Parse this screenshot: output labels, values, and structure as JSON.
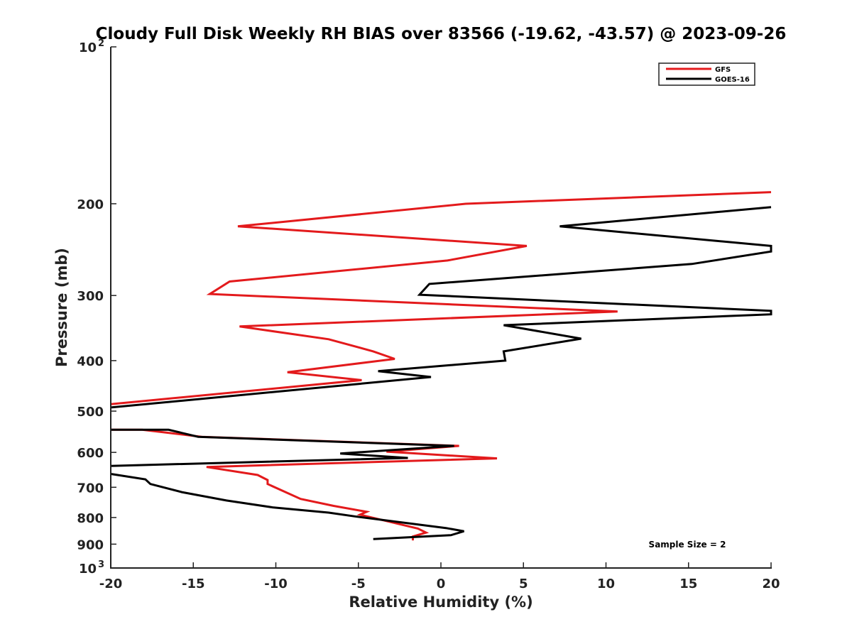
{
  "chart_data": {
    "type": "line",
    "title": "Cloudy Full Disk Weekly RH BIAS over 83566 (-19.62, -43.57) @ 2023-09-26",
    "xlabel": "Relative Humidity (%)",
    "ylabel": "Pressure (mb)",
    "xlim": [
      -20,
      20
    ],
    "ylim": [
      100,
      1000
    ],
    "y_scale": "log",
    "y_reversed": true,
    "grid": false,
    "legend_position": "top-right",
    "x_ticks": [
      "-20",
      "-15",
      "-10",
      "-5",
      "0",
      "5",
      "10",
      "15",
      "20"
    ],
    "y_ticks": [
      {
        "value": 100,
        "base": "10",
        "exp": "2"
      },
      {
        "value": 200,
        "label": "200"
      },
      {
        "value": 300,
        "label": "300"
      },
      {
        "value": 400,
        "label": "400"
      },
      {
        "value": 500,
        "label": "500"
      },
      {
        "value": 600,
        "label": "600"
      },
      {
        "value": 700,
        "label": "700"
      },
      {
        "value": 800,
        "label": "800"
      },
      {
        "value": 900,
        "label": "900"
      },
      {
        "value": 1000,
        "base": "10",
        "exp": "3"
      }
    ],
    "annotation": "Sample Size = 2",
    "series": [
      {
        "name": "GFS",
        "color": "#e31a1c",
        "points": [
          [
            20,
            190
          ],
          [
            1.5,
            200
          ],
          [
            -12.3,
            221
          ],
          [
            5.2,
            241
          ],
          [
            0.4,
            257
          ],
          [
            -12.8,
            282
          ],
          [
            -14,
            298
          ],
          [
            10.7,
            322
          ],
          [
            -12.2,
            344
          ],
          [
            -6.8,
            364
          ],
          [
            -4.1,
            384
          ],
          [
            -2.8,
            397
          ],
          [
            -9.3,
            421
          ],
          [
            -4.8,
            436
          ],
          [
            -20,
            485
          ],
          [
            null,
            null
          ],
          [
            -20,
            543
          ],
          [
            -18.1,
            543
          ],
          [
            -14.5,
            560
          ],
          [
            1.1,
            583
          ],
          [
            -3.3,
            598
          ],
          [
            3.4,
            616
          ],
          [
            -14.2,
            640
          ],
          [
            -11.1,
            663
          ],
          [
            -10.5,
            678
          ],
          [
            -10.5,
            690
          ],
          [
            -8.5,
            737
          ],
          [
            -6.5,
            760
          ],
          [
            -4.5,
            780
          ],
          [
            -4.9,
            790
          ],
          [
            -1.4,
            840
          ],
          [
            -0.9,
            855
          ],
          [
            -1.7,
            870
          ],
          [
            -1.7,
            885
          ]
        ]
      },
      {
        "name": "GOES-16",
        "color": "#000000",
        "points": [
          [
            20,
            203
          ],
          [
            7.2,
            221
          ],
          [
            20,
            241
          ],
          [
            20,
            247
          ],
          [
            15.2,
            261
          ],
          [
            -0.7,
            285
          ],
          [
            -1.3,
            299
          ],
          [
            20,
            321
          ],
          [
            20,
            326
          ],
          [
            3.8,
            342
          ],
          [
            8.5,
            363
          ],
          [
            3.8,
            384
          ],
          [
            3.9,
            400
          ],
          [
            -3.8,
            419
          ],
          [
            -0.6,
            430
          ],
          [
            -20,
            492
          ],
          [
            null,
            null
          ],
          [
            -20,
            543
          ],
          [
            -16.5,
            543
          ],
          [
            -14.7,
            560
          ],
          [
            0.8,
            583
          ],
          [
            -6.1,
            603
          ],
          [
            -2,
            615
          ],
          [
            -20,
            637
          ],
          [
            null,
            null
          ],
          [
            -20,
            660
          ],
          [
            -17.9,
            676
          ],
          [
            -17.6,
            690
          ],
          [
            -15.7,
            715
          ],
          [
            -13,
            742
          ],
          [
            -10.2,
            765
          ],
          [
            -6.8,
            783
          ],
          [
            -5.1,
            797
          ],
          [
            0.3,
            838
          ],
          [
            1.4,
            850
          ],
          [
            0.6,
            865
          ],
          [
            -4.1,
            880
          ]
        ]
      }
    ]
  }
}
